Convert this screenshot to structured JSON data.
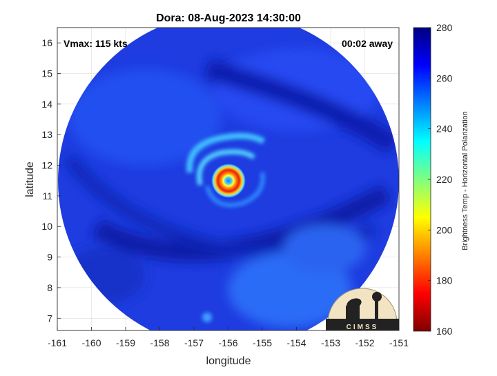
{
  "chart_data": {
    "type": "heatmap",
    "title": "Dora: 08-Aug-2023 14:30:00",
    "xlabel": "longitude",
    "ylabel": "latitude",
    "xlim": [
      -161,
      -151
    ],
    "ylim": [
      6.6,
      16.5
    ],
    "xticks": [
      -161,
      -160,
      -159,
      -158,
      -157,
      -156,
      -155,
      -154,
      -153,
      -152,
      -151
    ],
    "yticks": [
      7,
      8,
      9,
      10,
      11,
      12,
      13,
      14,
      15,
      16
    ],
    "grid": true,
    "annotations": {
      "vmax": "Vmax: 115 kts",
      "time_offset": "00:02 away"
    },
    "colorbar": {
      "label": "Brightness Temp - Horizontal Polarization",
      "min": 160,
      "max": 280,
      "ticks": [
        160,
        180,
        200,
        220,
        240,
        260,
        280
      ],
      "colormap": "jet"
    },
    "storm_center": {
      "lon": -155.85,
      "lat": 11.6
    },
    "logo_text": "CIMSS"
  },
  "colors": {
    "background_cold": "#1a2fd6",
    "band_dark": "#0b1aa8",
    "eyewall": "#e03010",
    "eye": "#1a8cff"
  }
}
